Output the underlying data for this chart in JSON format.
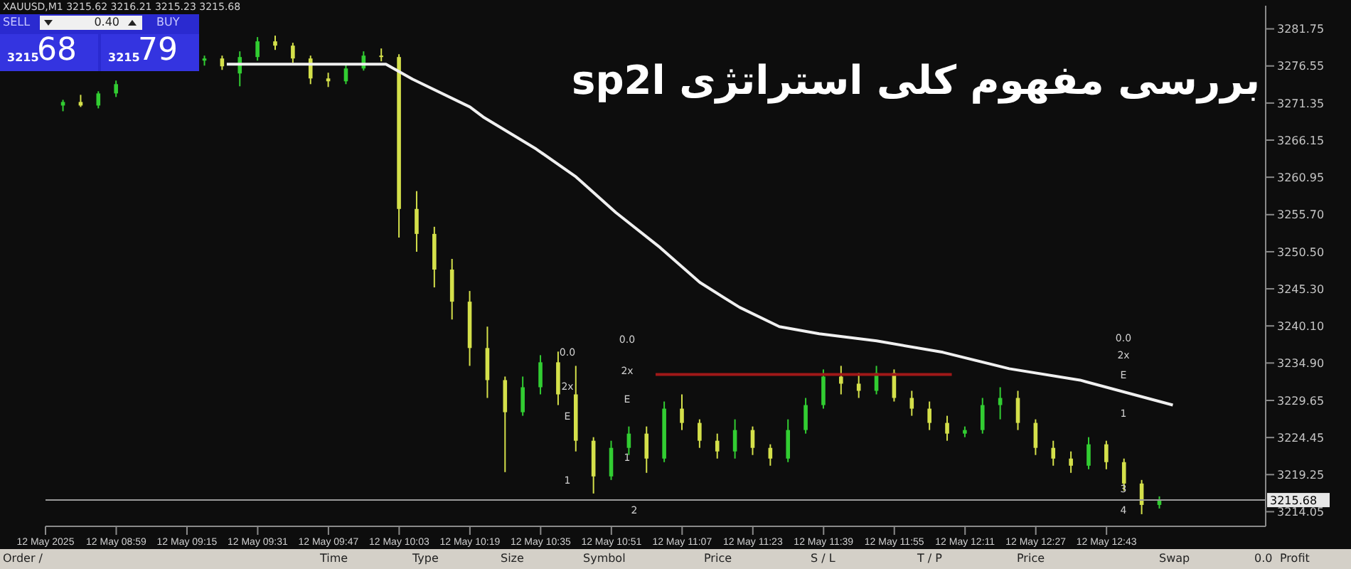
{
  "chart_data": {
    "type": "candlestick",
    "title": "بررسی مفهوم کلی استراتژی sp2l",
    "x": [
      "2025-05-12T08:47",
      "2025-05-12T08:51",
      "2025-05-12T08:55",
      "2025-05-12T08:59",
      "2025-05-12T09:19",
      "2025-05-12T09:23",
      "2025-05-12T09:27",
      "2025-05-12T09:31",
      "2025-05-12T09:35",
      "2025-05-12T09:39",
      "2025-05-12T09:43",
      "2025-05-12T09:47",
      "2025-05-12T09:51",
      "2025-05-12T09:55",
      "2025-05-12T09:59",
      "2025-05-12T10:03",
      "2025-05-12T10:07",
      "2025-05-12T10:11",
      "2025-05-12T10:15",
      "2025-05-12T10:19",
      "2025-05-12T10:23",
      "2025-05-12T10:27",
      "2025-05-12T10:31",
      "2025-05-12T10:35",
      "2025-05-12T10:39",
      "2025-05-12T10:43",
      "2025-05-12T10:47",
      "2025-05-12T10:51",
      "2025-05-12T10:55",
      "2025-05-12T10:59",
      "2025-05-12T11:03",
      "2025-05-12T11:07",
      "2025-05-12T11:11",
      "2025-05-12T11:15",
      "2025-05-12T11:19",
      "2025-05-12T11:23",
      "2025-05-12T11:27",
      "2025-05-12T11:31",
      "2025-05-12T11:35",
      "2025-05-12T11:39",
      "2025-05-12T11:43",
      "2025-05-12T11:47",
      "2025-05-12T11:51",
      "2025-05-12T11:55",
      "2025-05-12T11:59",
      "2025-05-12T12:03",
      "2025-05-12T12:07",
      "2025-05-12T12:11",
      "2025-05-12T12:15",
      "2025-05-12T12:19",
      "2025-05-12T12:23",
      "2025-05-12T12:27",
      "2025-05-12T12:31",
      "2025-05-12T12:35",
      "2025-05-12T12:39",
      "2025-05-12T12:43",
      "2025-05-12T12:47",
      "2025-05-12T12:51",
      "2025-05-12T12:55"
    ],
    "ohlc": [
      [
        3271.0,
        3271.8,
        3270.2,
        3271.5
      ],
      [
        3271.5,
        3272.5,
        3270.8,
        3271.0
      ],
      [
        3271.0,
        3273.0,
        3270.6,
        3272.7
      ],
      [
        3272.7,
        3274.5,
        3272.2,
        3274.0
      ],
      [
        3277.3,
        3278.0,
        3276.6,
        3277.6
      ],
      [
        3277.6,
        3278.0,
        3276.0,
        3276.5
      ],
      [
        3275.5,
        3278.6,
        3273.7,
        3277.8
      ],
      [
        3277.8,
        3280.6,
        3277.3,
        3280.0
      ],
      [
        3280.0,
        3280.8,
        3278.8,
        3279.4
      ],
      [
        3279.4,
        3279.8,
        3277.0,
        3277.6
      ],
      [
        3277.6,
        3278.0,
        3274.0,
        3274.8
      ],
      [
        3274.8,
        3275.6,
        3273.6,
        3274.4
      ],
      [
        3274.4,
        3276.8,
        3274.0,
        3276.2
      ],
      [
        3276.2,
        3278.6,
        3275.9,
        3278.0
      ],
      [
        3278.0,
        3279.0,
        3277.2,
        3277.8
      ],
      [
        3277.8,
        3278.2,
        3252.5,
        3256.5
      ],
      [
        3256.5,
        3259.0,
        3250.5,
        3253.0
      ],
      [
        3253.0,
        3254.0,
        3245.5,
        3248.0
      ],
      [
        3248.0,
        3249.5,
        3241.0,
        3243.5
      ],
      [
        3243.5,
        3245.0,
        3234.5,
        3237.0
      ],
      [
        3237.0,
        3240.0,
        3230.0,
        3232.5
      ],
      [
        3232.5,
        3233.0,
        3219.6,
        3228.0
      ],
      [
        3228.0,
        3233.0,
        3227.5,
        3231.5
      ],
      [
        3231.5,
        3236.0,
        3230.5,
        3235.0
      ],
      [
        3235.0,
        3236.5,
        3229.0,
        3230.5
      ],
      [
        3230.5,
        3234.5,
        3222.5,
        3224.0
      ],
      [
        3224.0,
        3224.5,
        3216.6,
        3219.0
      ],
      [
        3219.0,
        3224.0,
        3218.5,
        3223.0
      ],
      [
        3223.0,
        3226.0,
        3222.0,
        3225.0
      ],
      [
        3225.0,
        3226.0,
        3219.5,
        3221.5
      ],
      [
        3221.5,
        3229.5,
        3221.0,
        3228.5
      ],
      [
        3228.5,
        3230.5,
        3225.5,
        3226.5
      ],
      [
        3226.5,
        3227.0,
        3223.0,
        3224.0
      ],
      [
        3224.0,
        3225.0,
        3221.5,
        3222.5
      ],
      [
        3222.5,
        3227.0,
        3221.5,
        3225.5
      ],
      [
        3225.5,
        3226.0,
        3222.0,
        3223.0
      ],
      [
        3223.0,
        3223.5,
        3220.5,
        3221.5
      ],
      [
        3221.5,
        3227.0,
        3221.0,
        3225.5
      ],
      [
        3225.5,
        3230.0,
        3225.0,
        3229.0
      ],
      [
        3229.0,
        3234.0,
        3228.5,
        3233.0
      ],
      [
        3233.0,
        3234.5,
        3230.5,
        3232.0
      ],
      [
        3232.0,
        3233.5,
        3230.0,
        3231.0
      ],
      [
        3231.0,
        3234.5,
        3230.5,
        3233.5
      ],
      [
        3233.5,
        3234.0,
        3229.5,
        3230.0
      ],
      [
        3230.0,
        3231.0,
        3227.5,
        3228.5
      ],
      [
        3228.5,
        3229.5,
        3225.5,
        3226.5
      ],
      [
        3226.5,
        3227.5,
        3224.0,
        3225.0
      ],
      [
        3225.0,
        3226.0,
        3224.5,
        3225.5
      ],
      [
        3225.5,
        3230.0,
        3225.0,
        3229.0
      ],
      [
        3229.0,
        3231.5,
        3227.0,
        3230.0
      ],
      [
        3230.0,
        3231.0,
        3225.5,
        3226.5
      ],
      [
        3226.5,
        3227.0,
        3222.0,
        3223.0
      ],
      [
        3223.0,
        3224.0,
        3220.5,
        3221.5
      ],
      [
        3221.5,
        3222.5,
        3219.5,
        3220.5
      ],
      [
        3220.5,
        3224.5,
        3220.0,
        3223.5
      ],
      [
        3223.5,
        3224.0,
        3220.0,
        3221.0
      ],
      [
        3221.0,
        3221.5,
        3217.0,
        3218.0
      ],
      [
        3218.0,
        3218.5,
        3213.7,
        3215.0
      ],
      [
        3215.0,
        3216.2,
        3214.5,
        3215.7
      ]
    ],
    "colors": [
      "#32cd32",
      "#d4e04a",
      "#32cd32",
      "#32cd32",
      "#32cd32",
      "#d4e04a",
      "#32cd32",
      "#32cd32",
      "#d4e04a",
      "#d4e04a",
      "#d4e04a",
      "#d4e04a",
      "#32cd32",
      "#32cd32",
      "#d4e04a",
      "#d4e04a",
      "#d4e04a",
      "#d4e04a",
      "#d4e04a",
      "#d4e04a",
      "#d4e04a",
      "#d4e04a",
      "#32cd32",
      "#32cd32",
      "#d4e04a",
      "#d4e04a",
      "#d4e04a",
      "#32cd32",
      "#32cd32",
      "#d4e04a",
      "#32cd32",
      "#d4e04a",
      "#d4e04a",
      "#d4e04a",
      "#32cd32",
      "#d4e04a",
      "#d4e04a",
      "#32cd32",
      "#32cd32",
      "#32cd32",
      "#d4e04a",
      "#d4e04a",
      "#32cd32",
      "#d4e04a",
      "#d4e04a",
      "#d4e04a",
      "#d4e04a",
      "#32cd32",
      "#32cd32",
      "#32cd32",
      "#d4e04a",
      "#d4e04a",
      "#d4e04a",
      "#d4e04a",
      "#32cd32",
      "#d4e04a",
      "#d4e04a",
      "#d4e04a",
      "#32cd32"
    ],
    "series": [
      {
        "type": "line",
        "color": "#f0f0f0",
        "x": [
          "2025-05-12T09:24",
          "2025-05-12T10:00",
          "2025-05-12T10:06",
          "2025-05-12T10:19",
          "2025-05-12T10:22",
          "2025-05-12T10:34",
          "2025-05-12T10:43",
          "2025-05-12T10:52",
          "2025-05-12T11:02",
          "2025-05-12T11:11",
          "2025-05-12T11:20",
          "2025-05-12T11:29",
          "2025-05-12T11:38",
          "2025-05-12T11:51",
          "2025-05-12T12:06",
          "2025-05-12T12:21",
          "2025-05-12T12:37",
          "2025-05-12T12:49",
          "2025-05-12T12:58"
        ],
        "values": [
          3276.8,
          3276.8,
          3274.7,
          3270.8,
          3269.4,
          3264.9,
          3261.0,
          3256.0,
          3251.1,
          3246.2,
          3242.7,
          3240.0,
          3239.0,
          3238.0,
          3236.4,
          3234.1,
          3232.5,
          3230.5,
          3229.0
        ]
      },
      {
        "type": "line",
        "color": "#a01818",
        "x": [
          "2025-05-12T11:01",
          "2025-05-12T12:08"
        ],
        "values": [
          3233.3,
          3233.3
        ]
      }
    ],
    "xlim": [
      "2025-05-12T08:43",
      "2025-05-12T13:19"
    ],
    "xticks": [
      {
        "value": "2025-05-12T08:43",
        "label": "12 May 2025"
      },
      {
        "value": "2025-05-12T08:59",
        "label": "12 May 08:59"
      },
      {
        "value": "2025-05-12T09:15",
        "label": "12 May 09:15"
      },
      {
        "value": "2025-05-12T09:31",
        "label": "12 May 09:31"
      },
      {
        "value": "2025-05-12T09:47",
        "label": "12 May 09:47"
      },
      {
        "value": "2025-05-12T10:03",
        "label": "12 May 10:03"
      },
      {
        "value": "2025-05-12T10:19",
        "label": "12 May 10:19"
      },
      {
        "value": "2025-05-12T10:35",
        "label": "12 May 10:35"
      },
      {
        "value": "2025-05-12T10:51",
        "label": "12 May 10:51"
      },
      {
        "value": "2025-05-12T11:07",
        "label": "12 May 11:07"
      },
      {
        "value": "2025-05-12T11:23",
        "label": "12 May 11:23"
      },
      {
        "value": "2025-05-12T11:39",
        "label": "12 May 11:39"
      },
      {
        "value": "2025-05-12T11:55",
        "label": "12 May 11:55"
      },
      {
        "value": "2025-05-12T12:11",
        "label": "12 May 12:11"
      },
      {
        "value": "2025-05-12T12:27",
        "label": "12 May 12:27"
      },
      {
        "value": "2025-05-12T12:43",
        "label": "12 May 12:43"
      }
    ],
    "ylim": [
      3212,
      3285
    ],
    "yticks": [
      3281.75,
      3276.55,
      3271.35,
      3266.15,
      3260.95,
      {
        "value": 3255.7,
        "label": "3255.70"
      },
      {
        "value": 3250.5,
        "label": "3250.50"
      },
      {
        "value": 3245.3,
        "label": "3245.30"
      },
      {
        "value": 3240.1,
        "label": "3240.10"
      },
      {
        "value": 3234.9,
        "label": "3234.90"
      },
      3229.65,
      3224.45,
      3219.25,
      3214.05
    ],
    "ref_lines": [
      {
        "axis": "y",
        "value": 3215.68,
        "label": "3215.68",
        "color": "#9a9a9a"
      }
    ],
    "annotations": [
      "XAUUSD,M1 3215.62 3216.21 3215.23 3215.68",
      "SELL",
      "0.40",
      "BUY",
      "3215",
      "68",
      "3215",
      "79",
      "Order /",
      "Time",
      "Type",
      "Size",
      "Symbol",
      "Price",
      "S / L",
      "T / P",
      "Price",
      "Swap",
      "Profit",
      "0.0",
      "2x",
      "E",
      "1",
      "0.0",
      "2x",
      "E",
      "1",
      "2",
      "0.0",
      "2x",
      "E",
      "1",
      "3",
      "4"
    ]
  }
}
